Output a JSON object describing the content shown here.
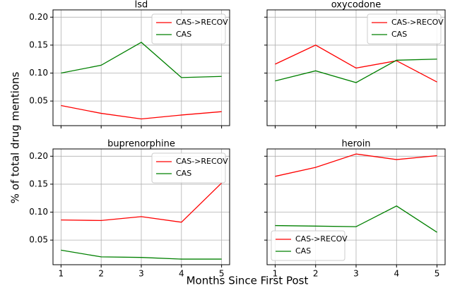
{
  "figure": {
    "xlabel": "Months Since First Post",
    "ylabel": "% of total drug mentions"
  },
  "chart_data": [
    {
      "type": "line",
      "title": "lsd",
      "x": [
        1,
        2,
        3,
        4,
        5
      ],
      "series": [
        {
          "name": "CAS->RECOV",
          "color": "#ff0000",
          "values": [
            0.042,
            0.028,
            0.018,
            0.025,
            0.031
          ]
        },
        {
          "name": "CAS",
          "color": "#008000",
          "values": [
            0.1,
            0.114,
            0.155,
            0.092,
            0.094
          ]
        }
      ],
      "xlim": [
        0.8,
        5.2
      ],
      "xticks": [
        1,
        2,
        3,
        4,
        5
      ],
      "ylim": [
        0.006,
        0.213
      ],
      "yticks": [
        0.05,
        {
          "value": 0.1,
          "label": "0.10"
        },
        0.15,
        {
          "value": 0.2,
          "label": "0.20"
        }
      ],
      "grid": true,
      "legend": "upper right"
    },
    {
      "type": "line",
      "title": "oxycodone",
      "x": [
        1,
        2,
        3,
        4,
        5
      ],
      "series": [
        {
          "name": "CAS->RECOV",
          "color": "#ff0000",
          "values": [
            0.116,
            0.15,
            0.109,
            0.122,
            0.084
          ]
        },
        {
          "name": "CAS",
          "color": "#008000",
          "values": [
            0.086,
            0.104,
            0.083,
            0.123,
            0.125
          ]
        }
      ],
      "xlim": [
        0.8,
        5.2
      ],
      "xticks": [
        1,
        2,
        3,
        4,
        5
      ],
      "ylim": [
        0.006,
        0.213
      ],
      "yticks": [
        0.05,
        {
          "value": 0.1,
          "label": "0.10"
        },
        0.15,
        {
          "value": 0.2,
          "label": "0.20"
        }
      ],
      "grid": true,
      "legend": "upper right"
    },
    {
      "type": "line",
      "title": "buprenorphine",
      "x": [
        1,
        2,
        3,
        4,
        5
      ],
      "series": [
        {
          "name": "CAS->RECOV",
          "color": "#ff0000",
          "values": [
            0.086,
            0.085,
            0.092,
            0.082,
            0.152
          ]
        },
        {
          "name": "CAS",
          "color": "#008000",
          "values": [
            0.032,
            0.02,
            0.019,
            0.016,
            0.016
          ]
        }
      ],
      "xlim": [
        0.8,
        5.2
      ],
      "xticks": [
        1,
        2,
        3,
        4,
        5
      ],
      "ylim": [
        0.006,
        0.213
      ],
      "yticks": [
        0.05,
        {
          "value": 0.1,
          "label": "0.10"
        },
        0.15,
        {
          "value": 0.2,
          "label": "0.20"
        }
      ],
      "grid": true,
      "legend": "upper right"
    },
    {
      "type": "line",
      "title": "heroin",
      "x": [
        1,
        2,
        3,
        4,
        5
      ],
      "series": [
        {
          "name": "CAS->RECOV",
          "color": "#ff0000",
          "values": [
            0.164,
            0.18,
            0.204,
            0.194,
            0.201
          ]
        },
        {
          "name": "CAS",
          "color": "#008000",
          "values": [
            0.076,
            0.075,
            0.074,
            0.111,
            0.064
          ]
        }
      ],
      "xlim": [
        0.8,
        5.2
      ],
      "xticks": [
        1,
        2,
        3,
        4,
        5
      ],
      "ylim": [
        0.006,
        0.213
      ],
      "yticks": [
        0.05,
        {
          "value": 0.1,
          "label": "0.10"
        },
        0.15,
        {
          "value": 0.2,
          "label": "0.20"
        }
      ],
      "grid": true,
      "legend": "lower left"
    }
  ]
}
